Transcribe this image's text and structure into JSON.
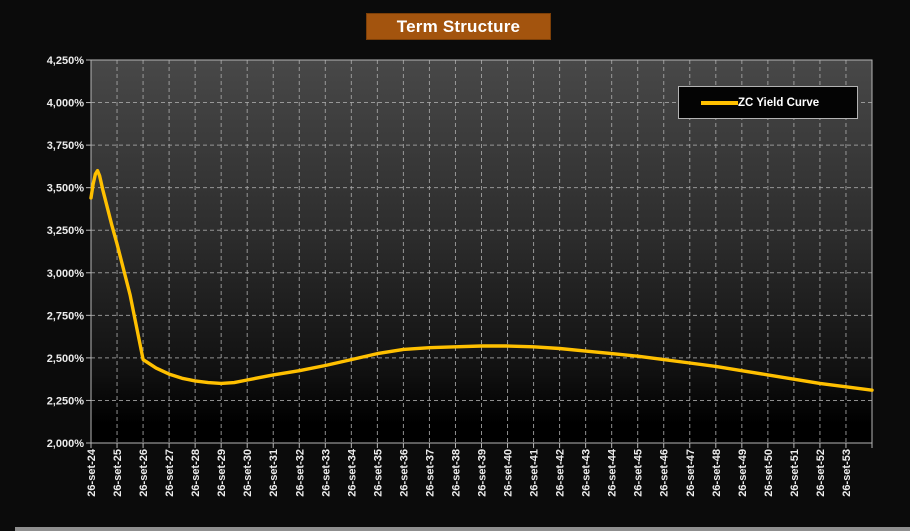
{
  "title": {
    "text": "Term Structure"
  },
  "legend": {
    "label": "ZC Yield Curve"
  },
  "colors": {
    "accent": "#FFC000",
    "title_bg": "#a3540e",
    "axis": "#b6b6b6",
    "grid": "#a8a8a8",
    "label": "#ececec",
    "plot_top": "#484848",
    "plot_bottom": "#000000"
  },
  "chart_data": {
    "type": "line",
    "title": "Term Structure",
    "xlabel": "",
    "ylabel": "",
    "grid": true,
    "legend_position": "top-right",
    "x_axis": {
      "categories": [
        "26-set-24",
        "26-set-25",
        "26-set-26",
        "26-set-27",
        "26-set-28",
        "26-set-29",
        "26-set-30",
        "26-set-31",
        "26-set-32",
        "26-set-33",
        "26-set-34",
        "26-set-35",
        "26-set-36",
        "26-set-37",
        "26-set-38",
        "26-set-39",
        "26-set-40",
        "26-set-41",
        "26-set-42",
        "26-set-43",
        "26-set-44",
        "26-set-45",
        "26-set-46",
        "26-set-47",
        "26-set-48",
        "26-set-49",
        "26-set-50",
        "26-set-51",
        "26-set-52",
        "26-set-53"
      ],
      "span_years": 30
    },
    "y_axis": {
      "min": 2.0,
      "max": 4.25,
      "step": 0.25,
      "ticks": [
        {
          "value": 2.0,
          "label": "2,000%"
        },
        {
          "value": 2.25,
          "label": "2,250%"
        },
        {
          "value": 2.5,
          "label": "2,500%"
        },
        {
          "value": 2.75,
          "label": "2,750%"
        },
        {
          "value": 3.0,
          "label": "3,000%"
        },
        {
          "value": 3.25,
          "label": "3,250%"
        },
        {
          "value": 3.5,
          "label": "3,500%"
        },
        {
          "value": 3.75,
          "label": "3,750%"
        },
        {
          "value": 4.0,
          "label": "4,000%"
        },
        {
          "value": 4.25,
          "label": "4,250%"
        }
      ]
    },
    "series": [
      {
        "name": "ZC Yield Curve",
        "color": "#FFC000",
        "points": [
          {
            "x": 0.0,
            "y": 3.44
          },
          {
            "x": 0.08,
            "y": 3.52
          },
          {
            "x": 0.17,
            "y": 3.58
          },
          {
            "x": 0.25,
            "y": 3.6
          },
          {
            "x": 0.33,
            "y": 3.57
          },
          {
            "x": 0.45,
            "y": 3.49
          },
          {
            "x": 0.6,
            "y": 3.4
          },
          {
            "x": 0.8,
            "y": 3.28
          },
          {
            "x": 1,
            "y": 3.17
          },
          {
            "x": 1.5,
            "y": 2.87
          },
          {
            "x": 2,
            "y": 2.49
          },
          {
            "x": 2.5,
            "y": 2.44
          },
          {
            "x": 3,
            "y": 2.405
          },
          {
            "x": 3.5,
            "y": 2.38
          },
          {
            "x": 4,
            "y": 2.365
          },
          {
            "x": 4.5,
            "y": 2.355
          },
          {
            "x": 5,
            "y": 2.35
          },
          {
            "x": 5.5,
            "y": 2.355
          },
          {
            "x": 6,
            "y": 2.37
          },
          {
            "x": 7,
            "y": 2.4
          },
          {
            "x": 8,
            "y": 2.425
          },
          {
            "x": 9,
            "y": 2.455
          },
          {
            "x": 10,
            "y": 2.49
          },
          {
            "x": 11,
            "y": 2.525
          },
          {
            "x": 12,
            "y": 2.55
          },
          {
            "x": 13,
            "y": 2.56
          },
          {
            "x": 14,
            "y": 2.565
          },
          {
            "x": 15,
            "y": 2.57
          },
          {
            "x": 16,
            "y": 2.57
          },
          {
            "x": 17,
            "y": 2.565
          },
          {
            "x": 18,
            "y": 2.555
          },
          {
            "x": 19,
            "y": 2.54
          },
          {
            "x": 20,
            "y": 2.525
          },
          {
            "x": 21,
            "y": 2.51
          },
          {
            "x": 22,
            "y": 2.49
          },
          {
            "x": 23,
            "y": 2.47
          },
          {
            "x": 24,
            "y": 2.45
          },
          {
            "x": 25,
            "y": 2.425
          },
          {
            "x": 26,
            "y": 2.4
          },
          {
            "x": 27,
            "y": 2.375
          },
          {
            "x": 28,
            "y": 2.35
          },
          {
            "x": 29,
            "y": 2.33
          },
          {
            "x": 30,
            "y": 2.31
          }
        ]
      }
    ]
  }
}
